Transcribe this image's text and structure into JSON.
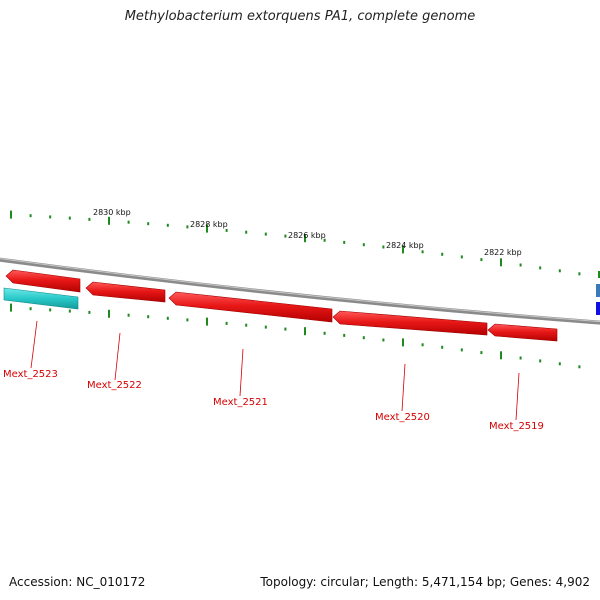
{
  "title": "Methylobacterium extorquens PA1, complete genome",
  "footer": {
    "accession": "Accession: NC_010172",
    "summary": "Topology: circular; Length: 5,471,154 bp; Genes: 4,902"
  },
  "colors": {
    "backbone": "#8a8a8a",
    "gene_forward": "#e81818",
    "gene_reverse": "#29c9c9",
    "tick": "#1e8a1e",
    "label": "#d40000"
  },
  "scale_labels": [
    "2830 kbp",
    "2828 kbp",
    "2826 kbp",
    "2824 kbp",
    "2822 kbp"
  ],
  "genes": [
    {
      "name": "Mext_2523",
      "strand": "reverse"
    },
    {
      "name": "Mext_2522",
      "strand": "forward"
    },
    {
      "name": "Mext_2521",
      "strand": "forward"
    },
    {
      "name": "Mext_2520",
      "strand": "forward"
    },
    {
      "name": "Mext_2519",
      "strand": "forward"
    }
  ]
}
